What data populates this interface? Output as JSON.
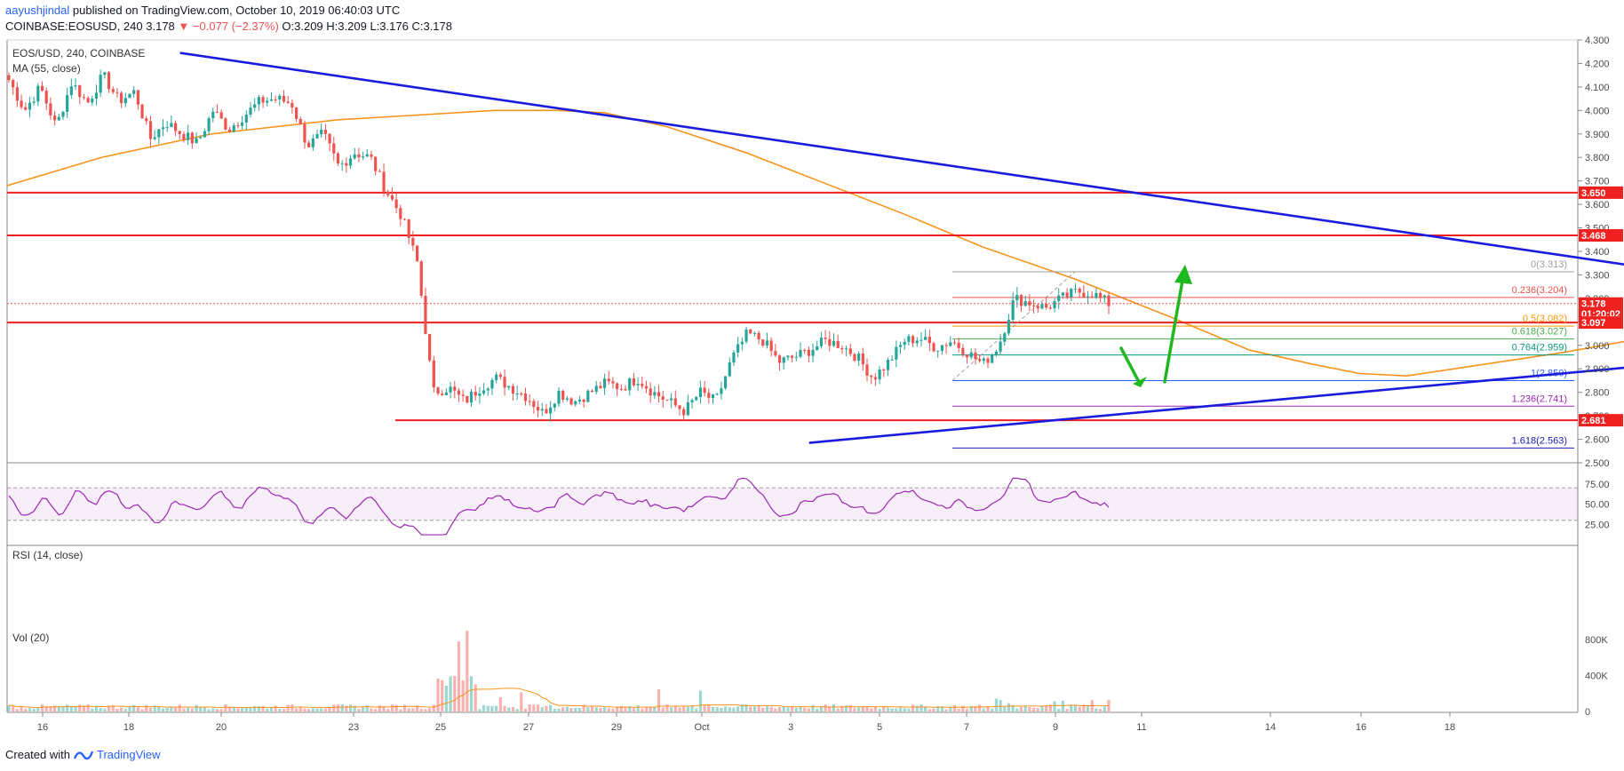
{
  "header": {
    "user": "aayushjindal",
    "published": " published on TradingView.com, October 10, 2019 06:40:03 UTC",
    "symbol": "COINBASE:EOSUSD, 240",
    "last": "3.178",
    "change": "−0.077 (−2.37%)",
    "o": "O:3.209",
    "h": "H:3.209",
    "l": "L:3.176",
    "c": "C:3.178"
  },
  "legend": {
    "title": "EOS/USD, 240, COINBASE",
    "ma": "MA (55, close)",
    "rsi": "RSI (14, close)",
    "vol": "Vol (20)"
  },
  "footer": {
    "created": "Created with",
    "brand": "TradingView"
  },
  "colors": {
    "up": "#26a69a",
    "down": "#ef5350",
    "trend": "#1b1be0",
    "horizontal": "#ef2020",
    "ma": "#f7931a",
    "rsi": "#9c27b0",
    "arrow": "#1fb81f"
  },
  "chart_data": [
    {
      "type": "candlestick",
      "title": "EOS/USD, 240, COINBASE",
      "ylim": [
        2.5,
        4.3
      ],
      "x_labels": [
        "16",
        "18",
        "20",
        "23",
        "25",
        "27",
        "29",
        "Oct",
        "3",
        "5",
        "7",
        "9",
        "11",
        "14",
        "16",
        "18"
      ],
      "y_ticks": [
        "4.300",
        "4.200",
        "4.100",
        "4.000",
        "3.900",
        "3.800",
        "3.700",
        "3.600",
        "3.500",
        "3.400",
        "3.300",
        "3.200",
        "3.100",
        "3.000",
        "2.900",
        "2.800",
        "2.700",
        "2.600",
        "2.500"
      ],
      "price_labels": [
        {
          "text": "3.650",
          "value": 3.65
        },
        {
          "text": "3.468",
          "value": 3.468
        },
        {
          "text": "3.178",
          "value": 3.178
        },
        {
          "text": "01:20:02",
          "value": 3.135
        },
        {
          "text": "3.097",
          "value": 3.097
        },
        {
          "text": "2.681",
          "value": 2.681
        }
      ],
      "horizontal_lines": [
        3.65,
        3.468,
        3.097,
        2.681
      ],
      "fibonacci": [
        {
          "label": "0(3.313)",
          "value": 3.313
        },
        {
          "label": "0.236(3.204)",
          "value": 3.204
        },
        {
          "label": "0.5(3.082)",
          "value": 3.082
        },
        {
          "label": "0.618(3.027)",
          "value": 3.027
        },
        {
          "label": "0.764(2.959)",
          "value": 2.959
        },
        {
          "label": "1(2.850)",
          "value": 2.85
        },
        {
          "label": "1.236(2.741)",
          "value": 2.741
        },
        {
          "label": "1.618(2.563)",
          "value": 2.563
        }
      ],
      "anchors": [
        [
          4.06,
          4.13
        ],
        [
          4.16,
          4.0
        ],
        [
          4.02,
          4.1
        ],
        [
          4.11,
          3.93
        ],
        [
          3.95,
          4.12
        ],
        [
          4.1,
          4.03
        ],
        [
          4.04,
          4.15
        ],
        [
          4.14,
          4.04
        ],
        [
          4.05,
          4.08
        ],
        [
          4.07,
          3.88
        ],
        [
          3.9,
          3.95
        ],
        [
          3.95,
          3.9
        ],
        [
          3.89,
          3.86
        ],
        [
          3.87,
          4.0
        ],
        [
          3.99,
          3.92
        ],
        [
          3.92,
          3.98
        ],
        [
          3.97,
          4.04
        ],
        [
          4.03,
          4.05
        ],
        [
          4.05,
          4.03
        ],
        [
          4.02,
          3.85
        ],
        [
          3.88,
          3.9
        ],
        [
          3.88,
          3.76
        ],
        [
          3.76,
          3.82
        ],
        [
          3.84,
          3.8
        ],
        [
          3.8,
          3.66
        ],
        [
          3.67,
          3.55
        ],
        [
          3.55,
          3.35
        ],
        [
          3.35,
          2.8
        ],
        [
          2.88,
          2.82
        ],
        [
          2.82,
          2.76
        ],
        [
          2.78,
          2.82
        ],
        [
          2.83,
          2.86
        ],
        [
          2.86,
          2.82
        ],
        [
          2.82,
          2.78
        ],
        [
          2.74,
          2.71
        ],
        [
          2.72,
          2.8
        ],
        [
          2.8,
          2.76
        ],
        [
          2.76,
          2.8
        ],
        [
          2.79,
          2.84
        ],
        [
          2.84,
          2.82
        ],
        [
          2.82,
          2.86
        ],
        [
          2.85,
          2.8
        ],
        [
          2.81,
          2.76
        ],
        [
          2.75,
          2.72
        ],
        [
          2.73,
          2.8
        ],
        [
          2.78,
          2.76
        ],
        [
          2.76,
          2.94
        ],
        [
          2.94,
          3.05
        ],
        [
          3.07,
          3.02
        ],
        [
          3.02,
          2.93
        ],
        [
          2.93,
          2.95
        ],
        [
          2.95,
          2.98
        ],
        [
          2.98,
          3.02
        ],
        [
          3.02,
          3.0
        ],
        [
          2.99,
          2.95
        ],
        [
          2.94,
          2.86
        ],
        [
          2.86,
          2.93
        ],
        [
          2.94,
          3.02
        ],
        [
          3.02,
          3.03
        ],
        [
          3.02,
          2.99
        ],
        [
          3.0,
          3.02
        ],
        [
          3.01,
          2.97
        ],
        [
          2.96,
          2.92
        ],
        [
          2.92,
          3.0
        ],
        [
          3.0,
          3.2
        ],
        [
          3.19,
          3.18
        ],
        [
          3.17,
          3.16
        ],
        [
          3.15,
          3.2
        ],
        [
          3.19,
          3.23
        ],
        [
          3.26,
          3.22
        ],
        [
          3.21,
          3.178
        ]
      ],
      "ma": [
        [
          0,
          3.68
        ],
        [
          0.06,
          3.8
        ],
        [
          0.13,
          3.9
        ],
        [
          0.21,
          3.96
        ],
        [
          0.26,
          3.98
        ],
        [
          0.31,
          4.0
        ],
        [
          0.35,
          4.0
        ],
        [
          0.38,
          3.99
        ],
        [
          0.42,
          3.93
        ],
        [
          0.47,
          3.82
        ],
        [
          0.52,
          3.69
        ],
        [
          0.57,
          3.56
        ],
        [
          0.62,
          3.42
        ],
        [
          0.68,
          3.28
        ],
        [
          0.74,
          3.12
        ],
        [
          0.79,
          2.98
        ],
        [
          0.83,
          2.92
        ],
        [
          0.86,
          2.88
        ],
        [
          0.89,
          2.87
        ],
        [
          0.94,
          2.92
        ],
        [
          0.99,
          2.97
        ],
        [
          1.04,
          3.03
        ],
        [
          1.1,
          3.06
        ]
      ],
      "trendlines": [
        {
          "from": [
            0.11,
            4.245
          ],
          "to": [
            1.135,
            3.24
          ]
        },
        {
          "from": [
            0.51,
            2.585
          ],
          "to": [
            1.135,
            2.97
          ]
        }
      ],
      "rsi": {
        "levels": [
          75,
          50,
          25
        ],
        "ylim": [
          0,
          100
        ]
      },
      "volume": {
        "ticks": [
          "800K",
          "400K",
          "0"
        ],
        "ylim": [
          0,
          1000000
        ]
      }
    }
  ]
}
